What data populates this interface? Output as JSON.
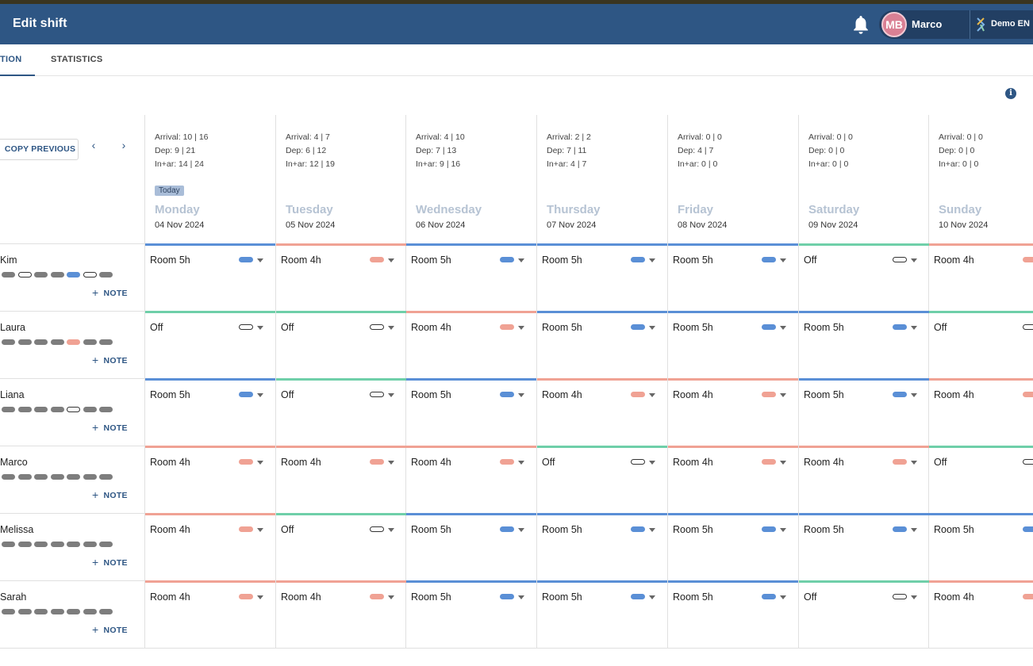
{
  "header": {
    "title": "Edit shift",
    "user": {
      "initials": "MB",
      "name": "Marco"
    },
    "tenant": "Demo EN"
  },
  "tabs": [
    {
      "label": "TION",
      "active": true
    },
    {
      "label": "STATISTICS",
      "active": false
    }
  ],
  "toolbar": {
    "copy_previous": "COPY PREVIOUS",
    "prev_icon": "chevron-left-icon",
    "next_icon": "chevron-right-icon",
    "info_icon": "info-icon"
  },
  "colors": {
    "header": "#2e5684",
    "room5": "#5a8fd6",
    "room4": "#f0a294",
    "off": "#6fcfa9"
  },
  "days": [
    {
      "name": "Monday",
      "date": "04 Nov 2024",
      "arrival": "Arrival: 10 | 16",
      "dep": "Dep: 9 | 21",
      "inar": "In+ar: 14 | 24",
      "today": "Today"
    },
    {
      "name": "Tuesday",
      "date": "05 Nov 2024",
      "arrival": "Arrival: 4 | 7",
      "dep": "Dep: 6 | 12",
      "inar": "In+ar: 12 | 19"
    },
    {
      "name": "Wednesday",
      "date": "06 Nov 2024",
      "arrival": "Arrival: 4 | 10",
      "dep": "Dep: 7 | 13",
      "inar": "In+ar: 9 | 16"
    },
    {
      "name": "Thursday",
      "date": "07 Nov 2024",
      "arrival": "Arrival: 2 | 2",
      "dep": "Dep: 7 | 11",
      "inar": "In+ar: 4 | 7"
    },
    {
      "name": "Friday",
      "date": "08 Nov 2024",
      "arrival": "Arrival: 0 | 0",
      "dep": "Dep: 4 | 7",
      "inar": "In+ar: 0 | 0"
    },
    {
      "name": "Saturday",
      "date": "09 Nov 2024",
      "arrival": "Arrival: 0 | 0",
      "dep": "Dep: 0 | 0",
      "inar": "In+ar: 0 | 0"
    },
    {
      "name": "Sunday",
      "date": "10 Nov 2024",
      "arrival": "Arrival: 0 | 0",
      "dep": "Dep: 0 | 0",
      "inar": "In+ar: 0 | 0"
    }
  ],
  "note_label": "NOTE",
  "employees": [
    {
      "name": "Kim",
      "pills": [
        "gray",
        "off",
        "gray",
        "gray",
        "blue",
        "off",
        "gray"
      ],
      "shifts": [
        "Room 5h",
        "Room 4h",
        "Room 5h",
        "Room 5h",
        "Room 5h",
        "Off",
        "Room 4h"
      ]
    },
    {
      "name": "Laura",
      "pills": [
        "gray",
        "gray",
        "gray",
        "gray",
        "salmon",
        "gray",
        "gray"
      ],
      "shifts": [
        "Off",
        "Off",
        "Room 4h",
        "Room 5h",
        "Room 5h",
        "Room 5h",
        "Off"
      ]
    },
    {
      "name": "Liana",
      "pills": [
        "gray",
        "gray",
        "gray",
        "gray",
        "off",
        "gray",
        "gray"
      ],
      "shifts": [
        "Room 5h",
        "Off",
        "Room 5h",
        "Room 4h",
        "Room 4h",
        "Room 5h",
        "Room 4h"
      ]
    },
    {
      "name": "Marco",
      "pills": [
        "gray",
        "gray",
        "gray",
        "gray",
        "gray",
        "gray",
        "gray"
      ],
      "shifts": [
        "Room 4h",
        "Room 4h",
        "Room 4h",
        "Off",
        "Room 4h",
        "Room 4h",
        "Off"
      ]
    },
    {
      "name": "Melissa",
      "pills": [
        "gray",
        "gray",
        "gray",
        "gray",
        "gray",
        "gray",
        "gray"
      ],
      "shifts": [
        "Room 4h",
        "Off",
        "Room 5h",
        "Room 5h",
        "Room 5h",
        "Room 5h",
        "Room 5h"
      ]
    },
    {
      "name": "Sarah",
      "pills": [
        "gray",
        "gray",
        "gray",
        "gray",
        "gray",
        "gray",
        "gray"
      ],
      "shifts": [
        "Room 4h",
        "Room 4h",
        "Room 5h",
        "Room 5h",
        "Room 5h",
        "Off",
        "Room 4h"
      ]
    }
  ]
}
